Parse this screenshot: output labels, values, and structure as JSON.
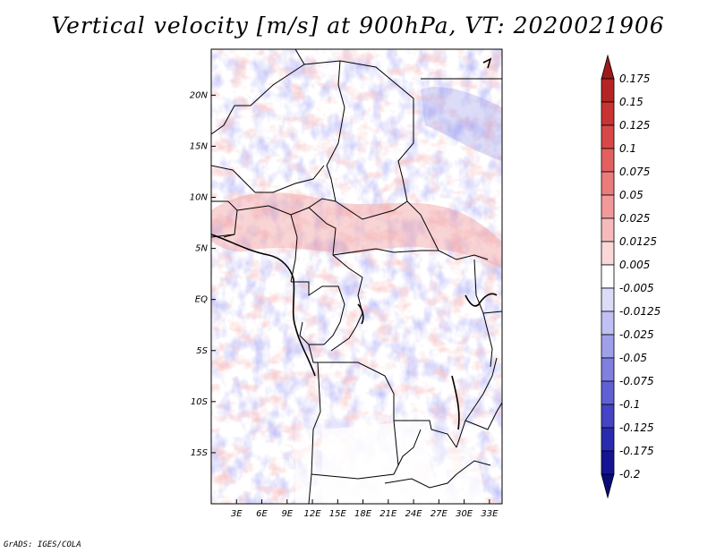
{
  "title": "Vertical velocity [m/s] at 900hPa, VT: 2020021906",
  "credit": "GrADS: IGES/COLA",
  "map": {
    "variable": "Vertical velocity",
    "units": "m/s",
    "level": "900hPa",
    "valid_time": "2020021906",
    "lat_labels": [
      "20N",
      "15N",
      "10N",
      "5N",
      "EQ",
      "5S",
      "10S",
      "15S"
    ],
    "lat_values": [
      20,
      15,
      10,
      5,
      0,
      -5,
      -10,
      -15
    ],
    "lon_labels": [
      "3E",
      "6E",
      "9E",
      "12E",
      "15E",
      "18E",
      "21E",
      "24E",
      "27E",
      "30E",
      "33E"
    ],
    "lon_values": [
      3,
      6,
      9,
      12,
      15,
      18,
      21,
      24,
      27,
      30,
      33
    ],
    "lon_range": [
      0,
      34.5
    ],
    "lat_range": [
      -20,
      24.5
    ]
  },
  "colorbar": {
    "labels": [
      "0.175",
      "0.15",
      "0.125",
      "0.1",
      "0.075",
      "0.05",
      "0.025",
      "0.0125",
      "0.005",
      "-0.005",
      "-0.0125",
      "-0.025",
      "-0.05",
      "-0.075",
      "-0.1",
      "-0.125",
      "-0.175",
      "-0.2"
    ],
    "colors": [
      "#a01818",
      "#b52424",
      "#c83434",
      "#d84848",
      "#e46060",
      "#ec7c7c",
      "#f29a9a",
      "#f7baba",
      "#fbd8d8",
      "#ffffff",
      "#dcdcf8",
      "#c0c0f2",
      "#a0a0ea",
      "#8080e0",
      "#6060d4",
      "#4444c4",
      "#2a2ab0",
      "#141494",
      "#0a0a78"
    ]
  }
}
